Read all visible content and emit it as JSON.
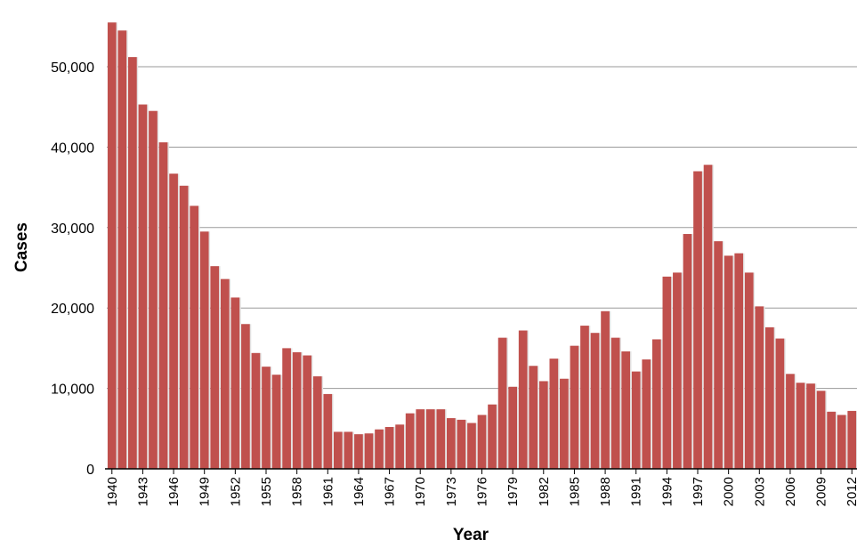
{
  "chart_data": {
    "type": "bar",
    "xlabel": "Year",
    "ylabel": "Cases",
    "ylim": [
      0,
      55000
    ],
    "yticks": [
      0,
      10000,
      20000,
      30000,
      40000,
      50000
    ],
    "ytick_labels": [
      "0",
      "10,000",
      "20,000",
      "30,000",
      "40,000",
      "50,000"
    ],
    "xtick_labels": [
      "1940",
      "1943",
      "1946",
      "1949",
      "1952",
      "1955",
      "1958",
      "1961",
      "1964",
      "1967",
      "1970",
      "1973",
      "1976",
      "1979",
      "1982",
      "1985",
      "1988",
      "1991",
      "1994",
      "1997",
      "2000",
      "2003",
      "2006",
      "2009",
      "2012"
    ],
    "grid": true,
    "bar_color": "#c0504d",
    "categories": [
      "1940",
      "1941",
      "1942",
      "1943",
      "1944",
      "1945",
      "1946",
      "1947",
      "1948",
      "1949",
      "1950",
      "1951",
      "1952",
      "1953",
      "1954",
      "1955",
      "1956",
      "1957",
      "1958",
      "1959",
      "1960",
      "1961",
      "1962",
      "1963",
      "1964",
      "1965",
      "1966",
      "1967",
      "1968",
      "1969",
      "1970",
      "1971",
      "1972",
      "1973",
      "1974",
      "1975",
      "1976",
      "1977",
      "1978",
      "1979",
      "1980",
      "1981",
      "1982",
      "1983",
      "1984",
      "1985",
      "1986",
      "1987",
      "1988",
      "1989",
      "1990",
      "1991",
      "1992",
      "1993",
      "1994",
      "1995",
      "1996",
      "1997",
      "1998",
      "1999",
      "2000",
      "2001",
      "2002",
      "2003",
      "2004",
      "2005",
      "2006",
      "2007",
      "2008",
      "2009",
      "2010",
      "2011",
      "2012"
    ],
    "values": [
      55500,
      54500,
      51200,
      45300,
      44500,
      40600,
      36700,
      35200,
      32700,
      29500,
      25200,
      23600,
      21300,
      18000,
      14400,
      12700,
      11700,
      15000,
      14500,
      14100,
      11500,
      9300,
      4600,
      4600,
      4300,
      4400,
      4900,
      5200,
      5500,
      6900,
      7400,
      7400,
      7400,
      6300,
      6100,
      5700,
      6700,
      8000,
      16300,
      10200,
      17200,
      12800,
      10900,
      13700,
      11200,
      15300,
      17800,
      16900,
      19600,
      16300,
      14600,
      12100,
      13600,
      16100,
      23900,
      24400,
      29200,
      37000,
      37800,
      28300,
      26500,
      26800,
      24400,
      20200,
      17600,
      16200,
      11800,
      10700,
      10600,
      9700,
      7100,
      6700,
      7200
    ]
  }
}
